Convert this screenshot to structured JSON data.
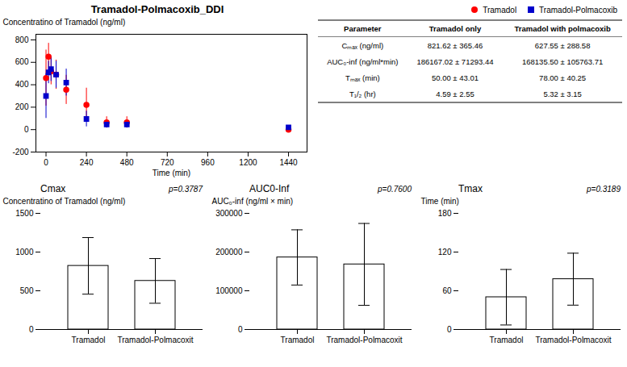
{
  "chart_data": [
    {
      "type": "scatter",
      "title": "Tramadol-Polmacoxib_DDI",
      "x_label": "Time (min)",
      "y_label": "Concentratino of Tramadol (ng/ml)",
      "x": [
        0,
        15,
        30,
        60,
        120,
        240,
        360,
        480,
        1440
      ],
      "xlim": [
        -60,
        1550
      ],
      "xticks": [
        0,
        240,
        480,
        720,
        960,
        1200,
        1440
      ],
      "ylim": [
        -200,
        850
      ],
      "yticks": [
        -200,
        0,
        200,
        400,
        600,
        800
      ],
      "legend": "upper right",
      "series": [
        {
          "name": "Tramadol",
          "color": "#FF0000",
          "marker": "circle",
          "values": [
            460,
            650,
            520,
            490,
            355,
            220,
            65,
            65,
            0
          ],
          "errors": [
            250,
            120,
            120,
            130,
            130,
            150,
            50,
            50,
            5
          ]
        },
        {
          "name": "Tramadol-Polmacoxib",
          "color": "#0000CC",
          "marker": "square",
          "values": [
            300,
            510,
            540,
            490,
            420,
            95,
            45,
            45,
            20
          ],
          "errors": [
            200,
            100,
            110,
            120,
            120,
            70,
            30,
            30,
            15
          ]
        }
      ]
    },
    {
      "type": "table",
      "columns": [
        "Parameter",
        "Tramadol only",
        "Tramadol with polmacoxib"
      ],
      "rows": [
        [
          "Cₘₐₓ (ng/ml)",
          "821.62 ± 365.46",
          "627.55 ± 288.58"
        ],
        [
          "AUC₀-inf (ng/ml*min)",
          "186167.02 ± 71293.44",
          "168135.50 ± 105763.71"
        ],
        [
          "Tₘₐₓ (min)",
          "50.00 ± 43.01",
          "78.00 ± 40.25"
        ],
        [
          "T₁/₂ (hr)",
          "4.59 ± 2.55",
          "5.32 ± 3.15"
        ]
      ]
    },
    {
      "type": "bar",
      "title": "Cmax",
      "y_label": "Concentratino of Tramadol (ng/ml)",
      "categories": [
        "Tramadol",
        "Tramadol-Polmacoxit"
      ],
      "values": [
        821.62,
        627.55
      ],
      "errors": [
        365.46,
        288.58
      ],
      "ylim": [
        0,
        1500
      ],
      "yticks": [
        0,
        500,
        1000,
        1500
      ],
      "annotation": "p=0.3787"
    },
    {
      "type": "bar",
      "title": "AUC0-Inf",
      "y_label": "AUC₀-inf (ng/ml × min)",
      "categories": [
        "Tramadol",
        "Tramadol-Polmacoxit"
      ],
      "values": [
        186167.02,
        168135.5
      ],
      "errors": [
        71293.44,
        105763.71
      ],
      "ylim": [
        0,
        300000
      ],
      "yticks": [
        0,
        100000,
        200000,
        300000
      ],
      "annotation": "p=0.7600"
    },
    {
      "type": "bar",
      "title": "Tmax",
      "y_label": "Time (min)",
      "categories": [
        "Tramadol",
        "Tramadol-Polmacoxit"
      ],
      "values": [
        50.0,
        78.0
      ],
      "errors": [
        43.01,
        40.25
      ],
      "ylim": [
        0,
        180
      ],
      "yticks": [
        0,
        60,
        120,
        180
      ],
      "annotation": "p=0.3189"
    }
  ]
}
